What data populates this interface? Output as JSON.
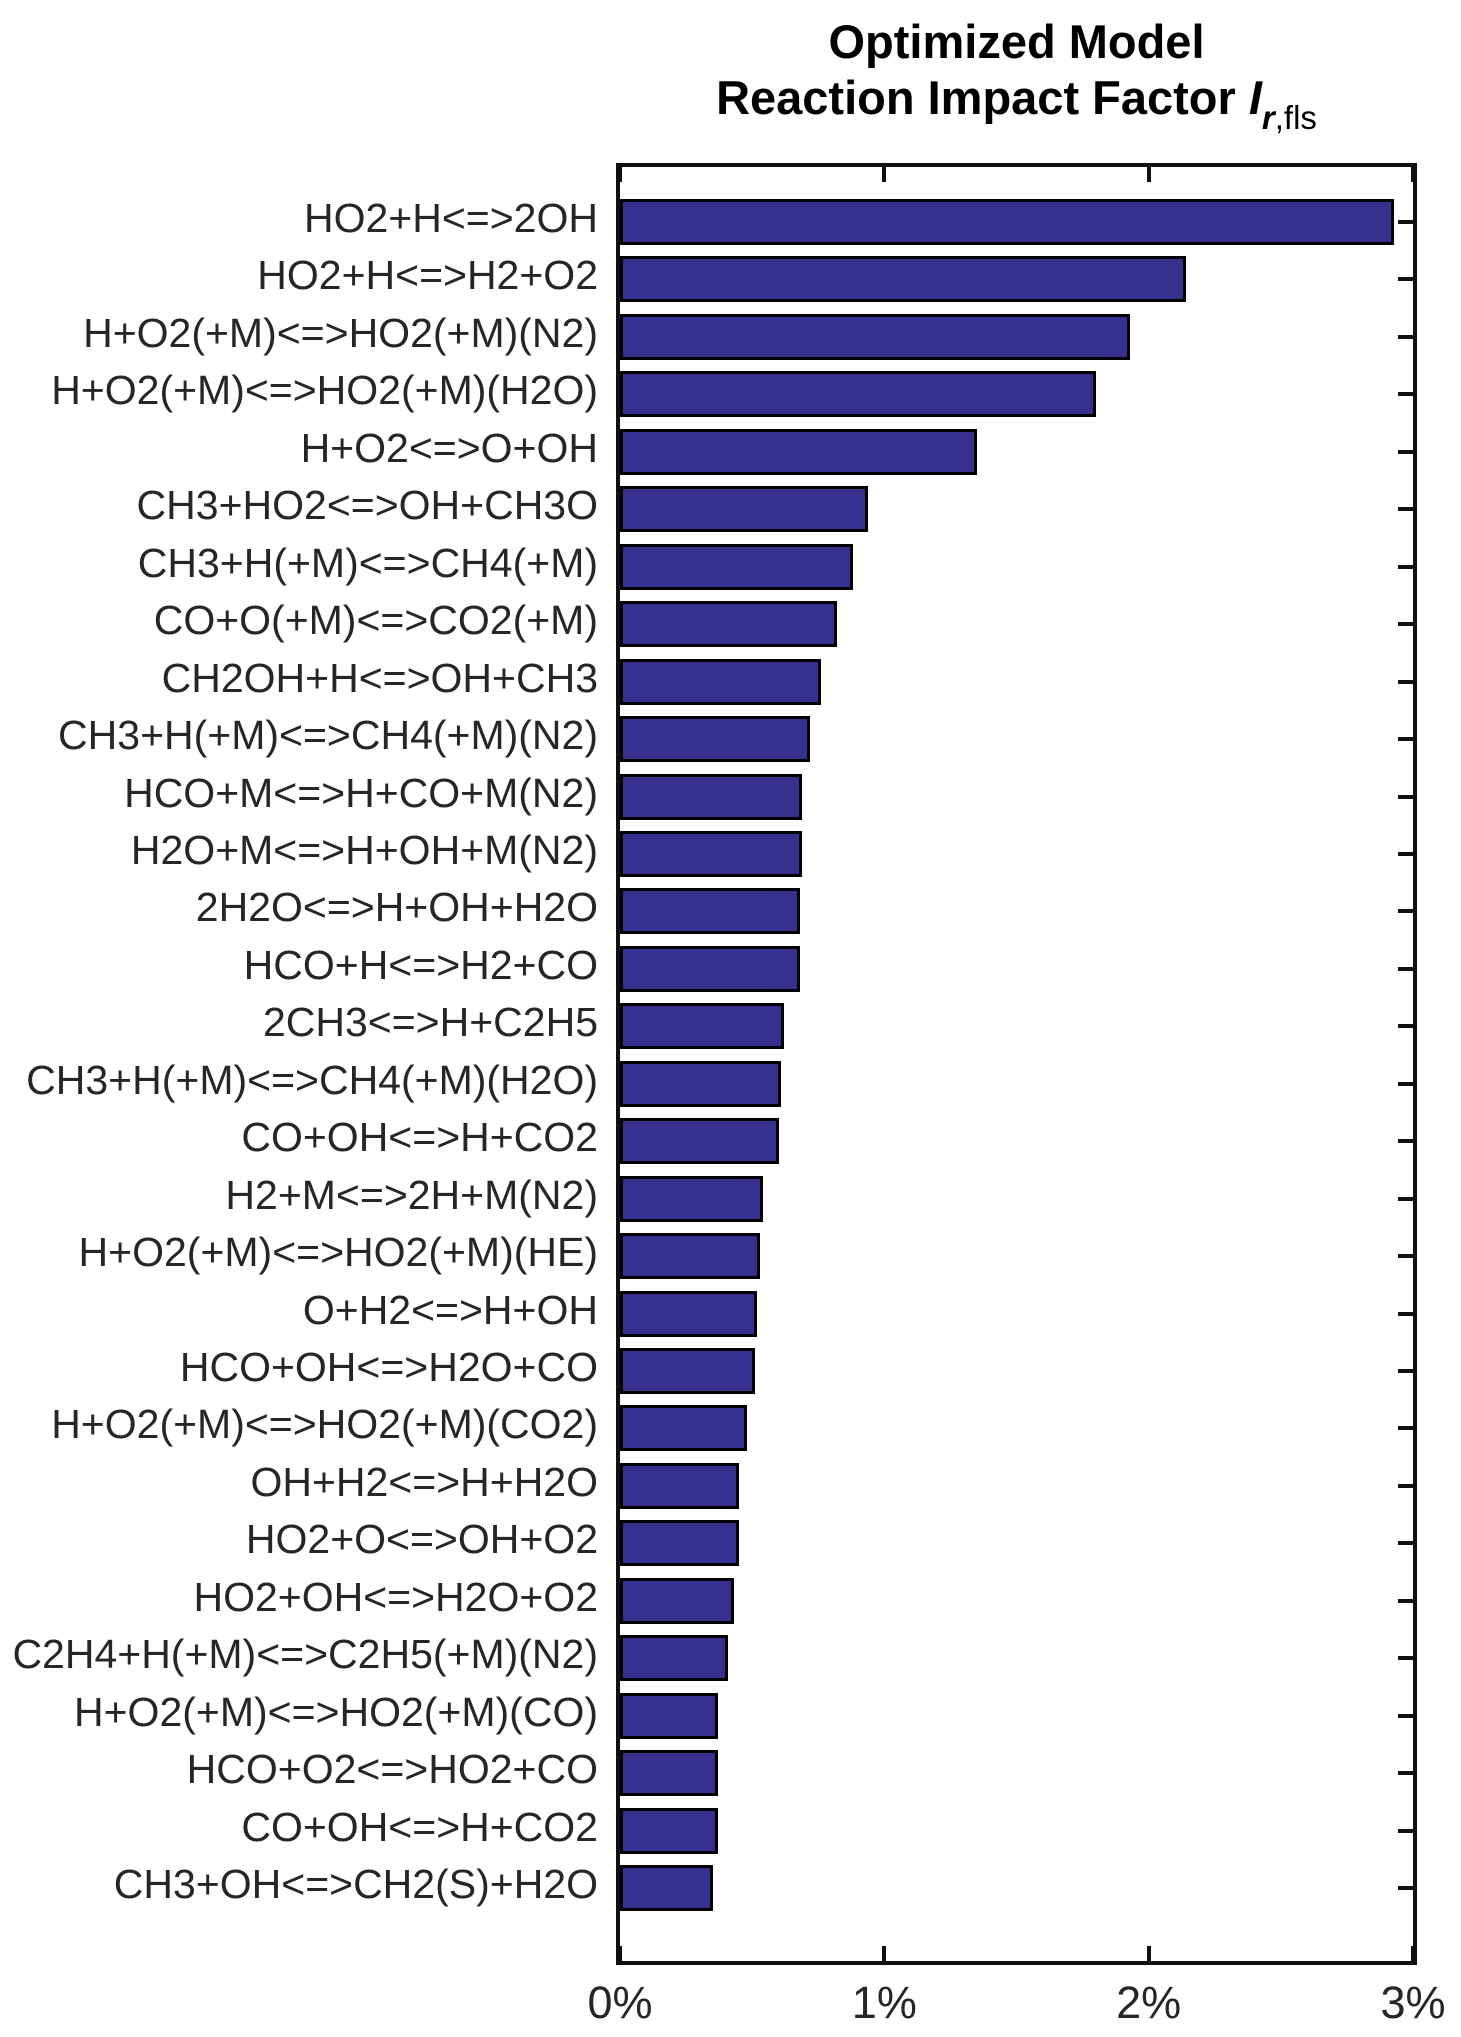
{
  "figure": {
    "title_line1": "Optimized Model",
    "title_line2_prefix": "Reaction Impact Factor ",
    "title_symbol": "I",
    "title_sub_italic": "r",
    "title_sub_regular": ",fls"
  },
  "chart_data": {
    "type": "bar",
    "orientation": "horizontal",
    "title": "Optimized Model — Reaction Impact Factor I_r,fls",
    "xlabel": "",
    "ylabel": "",
    "unit": "%",
    "xlim": [
      0,
      3
    ],
    "x_tick_labels": [
      "0%",
      "1%",
      "2%",
      "3%"
    ],
    "x_tick_values": [
      0,
      1,
      2,
      3
    ],
    "grid": false,
    "legend": "none",
    "bar_color": "#362F8E",
    "bar_edge_color": "#000000",
    "categories": [
      "HO2+H<=>2OH",
      "HO2+H<=>H2+O2",
      "H+O2(+M)<=>HO2(+M)(N2)",
      "H+O2(+M)<=>HO2(+M)(H2O)",
      "H+O2<=>O+OH",
      "CH3+HO2<=>OH+CH3O",
      "CH3+H(+M)<=>CH4(+M)",
      "CO+O(+M)<=>CO2(+M)",
      "CH2OH+H<=>OH+CH3",
      "CH3+H(+M)<=>CH4(+M)(N2)",
      "HCO+M<=>H+CO+M(N2)",
      "H2O+M<=>H+OH+M(N2)",
      "2H2O<=>H+OH+H2O",
      "HCO+H<=>H2+CO",
      "2CH3<=>H+C2H5",
      "CH3+H(+M)<=>CH4(+M)(H2O)",
      "CO+OH<=>H+CO2",
      "H2+M<=>2H+M(N2)",
      "H+O2(+M)<=>HO2(+M)(HE)",
      "O+H2<=>H+OH",
      "HCO+OH<=>H2O+CO",
      "H+O2(+M)<=>HO2(+M)(CO2)",
      "OH+H2<=>H+H2O",
      "HO2+O<=>OH+O2",
      "HO2+OH<=>H2O+O2",
      "C2H4+H(+M)<=>C2H5(+M)(N2)",
      "H+O2(+M)<=>HO2(+M)(CO)",
      "HCO+O2<=>HO2+CO",
      "CO+OH<=>H+CO2",
      "CH3+OH<=>CH2(S)+H2O"
    ],
    "values": [
      2.93,
      2.14,
      1.93,
      1.8,
      1.35,
      0.94,
      0.88,
      0.82,
      0.76,
      0.72,
      0.69,
      0.69,
      0.68,
      0.68,
      0.62,
      0.61,
      0.6,
      0.54,
      0.53,
      0.52,
      0.51,
      0.48,
      0.45,
      0.45,
      0.43,
      0.41,
      0.37,
      0.37,
      0.37,
      0.35
    ]
  }
}
